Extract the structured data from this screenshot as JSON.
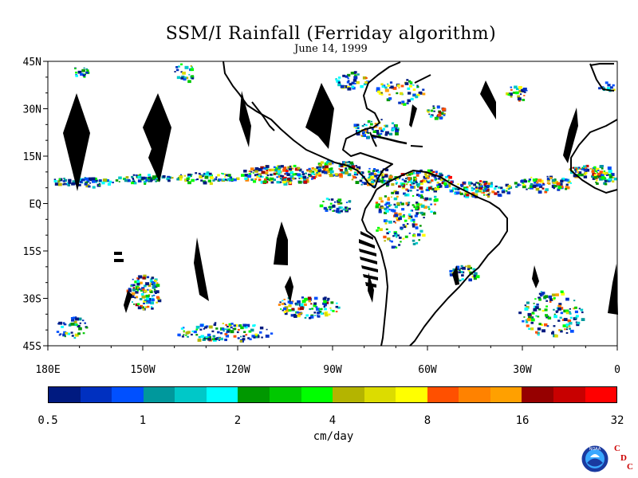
{
  "title": "SSM/I Rainfall (Ferriday algorithm)",
  "subtitle": "June 14, 1999",
  "map": {
    "lon_range": [
      -180,
      0
    ],
    "lat_range": [
      -45,
      45
    ],
    "lat_ticks": [
      {
        "value": 45,
        "label": "45N"
      },
      {
        "value": 30,
        "label": "30N"
      },
      {
        "value": 15,
        "label": "15N"
      },
      {
        "value": 0,
        "label": "EQ"
      },
      {
        "value": -15,
        "label": "15S"
      },
      {
        "value": -30,
        "label": "30S"
      },
      {
        "value": -45,
        "label": "45S"
      }
    ],
    "lon_ticks": [
      {
        "value": -180,
        "label": "180E"
      },
      {
        "value": -150,
        "label": "150W"
      },
      {
        "value": -120,
        "label": "120W"
      },
      {
        "value": -90,
        "label": "90W"
      },
      {
        "value": -60,
        "label": "60W"
      },
      {
        "value": -30,
        "label": "30W"
      },
      {
        "value": 0,
        "label": "0"
      }
    ],
    "coastline_color": "#000000",
    "gap_color": "#000000"
  },
  "colorbar": {
    "colors": [
      "#001a80",
      "#0030c0",
      "#0050ff",
      "#00989c",
      "#00c8c8",
      "#00ffff",
      "#009800",
      "#00c800",
      "#00ff00",
      "#b4b400",
      "#dcdc00",
      "#ffff00",
      "#ff5000",
      "#ff8200",
      "#ffa000",
      "#960000",
      "#c80000",
      "#ff0000"
    ],
    "tick_labels": [
      "0.5",
      "1",
      "2",
      "4",
      "8",
      "16",
      "32"
    ],
    "unit": "cm/day"
  },
  "logo": {
    "text": "NOAA",
    "letters": [
      "C",
      "D",
      "C"
    ],
    "letter_color": "#cc0000"
  }
}
